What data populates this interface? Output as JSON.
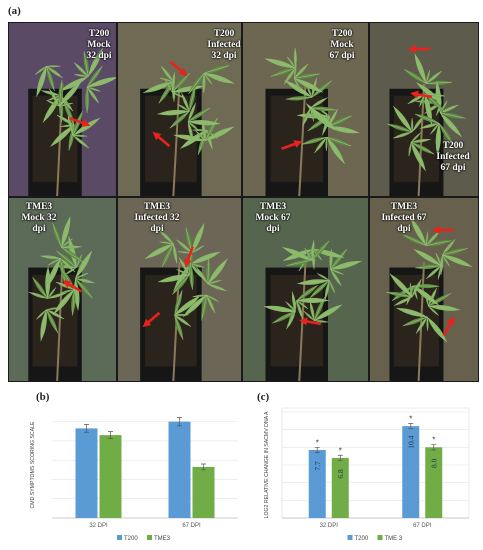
{
  "figure": {
    "panel_a_label": "(a)",
    "panel_b_label": "(b)",
    "panel_c_label": "(c)"
  },
  "photos": [
    {
      "caption": "T200\nMock\n32 dpi",
      "bg": "#5b4a66"
    },
    {
      "caption": "T200\nInfected\n32 dpi",
      "bg": "#6e6a54"
    },
    {
      "caption": "T200\nMock\n67 dpi",
      "bg": "#6d6650"
    },
    {
      "caption": "T200\nInfected\n67 dpi",
      "bg": "#5d5c4c"
    },
    {
      "caption": "TME3\nMock 32\ndpi",
      "bg": "#5c6a58"
    },
    {
      "caption": "TME3\nInfected 32\ndpi",
      "bg": "#6b6656"
    },
    {
      "caption": "TME3\nMock 67\ndpi",
      "bg": "#56664e"
    },
    {
      "caption": "TME3\nInfected 67\ndpi",
      "bg": "#66604c"
    }
  ],
  "colors": {
    "t200": "#5b9bd5",
    "tme3": "#70ad47",
    "arrow": "#e8231e"
  },
  "chart_data": [
    {
      "type": "bar",
      "ylabel": "CMD SYMPTOMS SCORING SCALE",
      "categories": [
        "32 DPI",
        "67 DPI"
      ],
      "series": [
        {
          "name": "T200",
          "values": [
            4.65,
            5.0
          ],
          "errors": [
            0.2,
            0.22
          ]
        },
        {
          "name": "TME3",
          "values": [
            4.3,
            2.65
          ],
          "errors": [
            0.18,
            0.15
          ]
        }
      ],
      "ylim": [
        0,
        5.5
      ],
      "legend": "bottom"
    },
    {
      "type": "bar",
      "ylabel": "LOG2 RELATIVE CHANGE IN SACMV DNA A",
      "categories": [
        "32 DPI",
        "67 DPI"
      ],
      "series": [
        {
          "name": "T200",
          "values": [
            7.7,
            10.4
          ],
          "labels": [
            "7.7",
            "10.4"
          ],
          "errors": [
            0.3,
            0.3
          ],
          "stars": [
            "*",
            "*"
          ]
        },
        {
          "name": "TME 3",
          "values": [
            6.8,
            8.0
          ],
          "labels": [
            "6.8",
            "8.0"
          ],
          "errors": [
            0.3,
            0.3
          ],
          "stars": [
            "*",
            "*"
          ]
        }
      ],
      "ylim": [
        0,
        12
      ],
      "legend": "bottom"
    }
  ]
}
